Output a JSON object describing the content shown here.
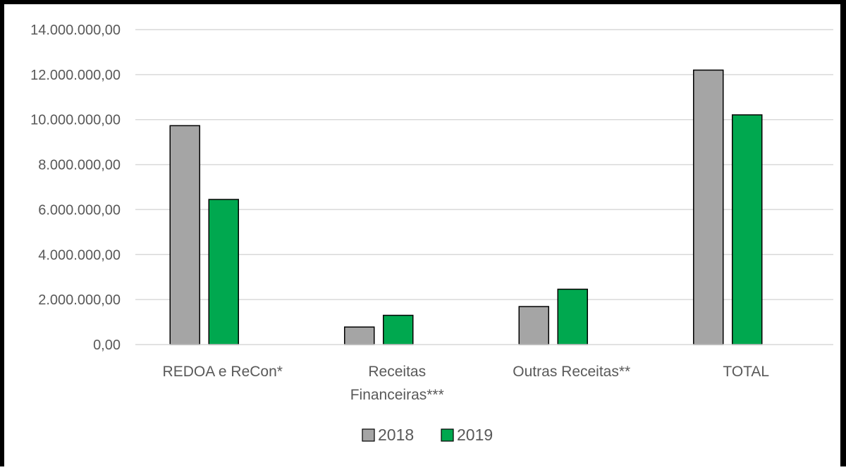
{
  "chart_data": {
    "type": "bar",
    "categories": [
      [
        "REDOA e ReCon*"
      ],
      [
        "Receitas",
        "Financeiras***"
      ],
      [
        "Outras Receitas**"
      ],
      [
        "TOTAL"
      ]
    ],
    "series": [
      {
        "name": "2018",
        "color": "#A5A5A5",
        "values": [
          9730000,
          780000,
          1690000,
          12200000
        ]
      },
      {
        "name": "2019",
        "color": "#00A84F",
        "values": [
          6450000,
          1300000,
          2460000,
          10210000
        ]
      }
    ],
    "yticks": [
      "0,00",
      "2.000.000,00",
      "4.000.000,00",
      "6.000.000,00",
      "8.000.000,00",
      "10.000.000,00",
      "12.000.000,00",
      "14.000.000,00"
    ],
    "ylim": [
      0,
      14000000
    ],
    "grid": true,
    "legend_position": "bottom",
    "title": "",
    "xlabel": "",
    "ylabel": ""
  }
}
